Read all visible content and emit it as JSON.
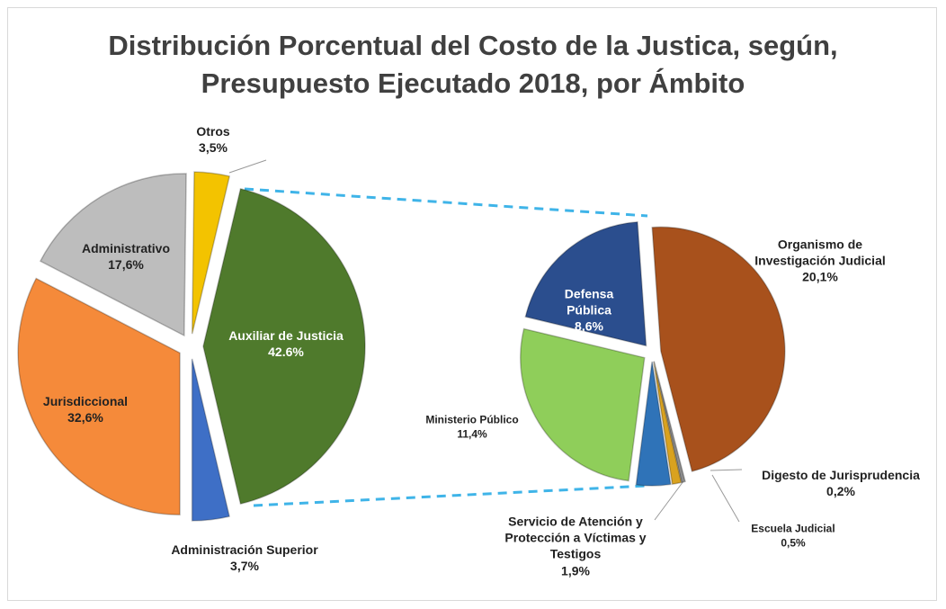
{
  "chart_data": [
    {
      "type": "pie",
      "title": "Distribución Porcentual del Costo de la Justica, según, Presupuesto Ejecutado 2018, por Ámbito",
      "categories": [
        "Auxiliar de Justicia",
        "Administración Superior",
        "Jurisdiccional",
        "Administrativo",
        "Otros"
      ],
      "values": [
        42.6,
        3.7,
        32.6,
        17.6,
        3.5
      ],
      "value_labels": [
        "42.6%",
        "3,7%",
        "32,6%",
        "17,6%",
        "3,5%"
      ],
      "colors": [
        "#4f7a2c",
        "#3e6fc6",
        "#f58a3a",
        "#bdbdbd",
        "#f3c300"
      ]
    },
    {
      "type": "pie",
      "categories": [
        "Organismo de Investigación Judicial",
        "Digesto de Jurisprudencia",
        "Escuela Judicial",
        "Servicio de Atención y Protección a Víctimas y Testigos",
        "Ministerio Público",
        "Defensa Pública"
      ],
      "values": [
        20.1,
        0.2,
        0.5,
        1.9,
        11.4,
        8.6
      ],
      "value_labels": [
        "20,1%",
        "0,2%",
        "0,5%",
        "1,9%",
        "11,4%",
        "8,6%"
      ],
      "colors": [
        "#a8511c",
        "#8c8c8c",
        "#d9a21f",
        "#2f73b8",
        "#8fce5a",
        "#2b4e8e"
      ]
    }
  ]
}
